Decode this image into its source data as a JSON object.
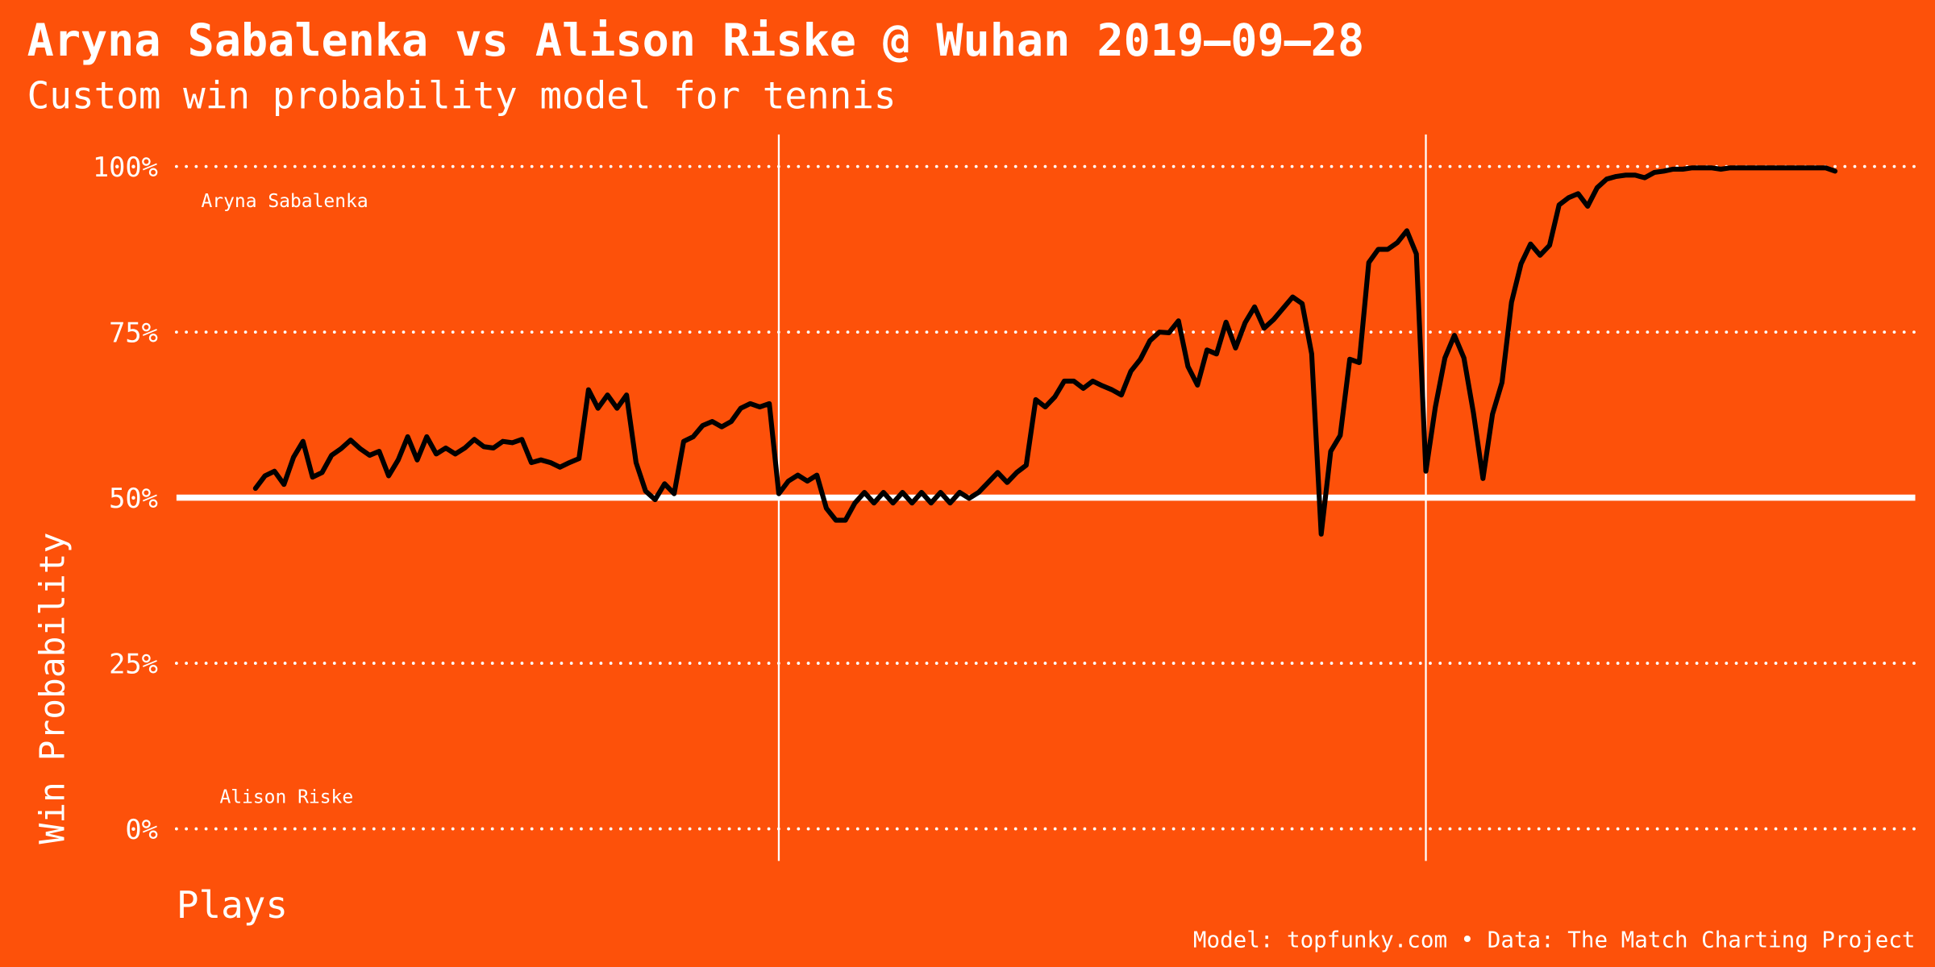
{
  "chart_data": {
    "type": "line",
    "title": "Aryna Sabalenka vs Alison Riske @ Wuhan 2019–09–28",
    "subtitle": "Custom win probability model for tennis",
    "y_label": "Win Probability",
    "x_label": "Plays",
    "caption": "Model: topfunky.com • Data: The Match Charting Project",
    "top_label": "Aryna Sabalenka",
    "bottom_label": "Alison Riske",
    "color": "#000000",
    "ylim": [
      0,
      100
    ],
    "yticks": [
      {
        "value": 0,
        "label": "0%"
      },
      {
        "value": 25,
        "label": "25%"
      },
      {
        "value": 50,
        "label": "50%"
      },
      {
        "value": 75,
        "label": "75%"
      },
      {
        "value": 100,
        "label": "100%"
      }
    ],
    "grid": true,
    "midline": 50,
    "set_breaks": [
      55,
      123
    ],
    "values": [
      51.4,
      53.3,
      54.0,
      52.0,
      56.1,
      58.5,
      53.1,
      53.8,
      56.4,
      57.4,
      58.7,
      57.4,
      56.4,
      57.0,
      53.3,
      55.7,
      59.2,
      55.7,
      59.2,
      56.6,
      57.5,
      56.6,
      57.5,
      58.8,
      57.7,
      57.5,
      58.5,
      58.3,
      58.8,
      55.3,
      55.7,
      55.3,
      54.6,
      55.3,
      55.9,
      66.3,
      63.5,
      65.5,
      63.5,
      65.5,
      55.3,
      51.0,
      49.7,
      52.1,
      50.6,
      58.5,
      59.2,
      60.9,
      61.5,
      60.7,
      61.5,
      63.5,
      64.2,
      63.7,
      64.2,
      50.6,
      52.5,
      53.4,
      52.5,
      53.4,
      48.4,
      46.6,
      46.6,
      49.2,
      50.8,
      49.2,
      50.8,
      49.2,
      50.8,
      49.2,
      50.8,
      49.2,
      50.8,
      49.2,
      50.8,
      49.9,
      50.8,
      52.3,
      53.8,
      52.3,
      53.8,
      54.9,
      64.8,
      63.7,
      65.2,
      67.6,
      67.6,
      66.5,
      67.6,
      66.9,
      66.3,
      65.5,
      69.1,
      70.9,
      73.7,
      75.0,
      74.9,
      76.7,
      69.8,
      67.0,
      72.3,
      71.7,
      76.5,
      72.6,
      76.4,
      78.8,
      75.6,
      76.9,
      78.6,
      80.3,
      79.3,
      71.7,
      44.5,
      57.0,
      59.4,
      70.9,
      70.4,
      85.5,
      87.5,
      87.5,
      88.5,
      90.3,
      86.8,
      54.0,
      63.7,
      71.1,
      74.5,
      71.1,
      62.8,
      52.9,
      62.6,
      67.4,
      79.5,
      85.3,
      88.3,
      86.6,
      88.1,
      94.2,
      95.3,
      95.9,
      94.0,
      96.8,
      98.1,
      98.5,
      98.7,
      98.7,
      98.3,
      99.1,
      99.3,
      99.6,
      99.6,
      99.8,
      99.8,
      99.8,
      99.6,
      99.8,
      99.8,
      99.8,
      99.8,
      99.8,
      99.8,
      99.8,
      99.8,
      99.8,
      99.8,
      99.8,
      99.3
    ]
  }
}
